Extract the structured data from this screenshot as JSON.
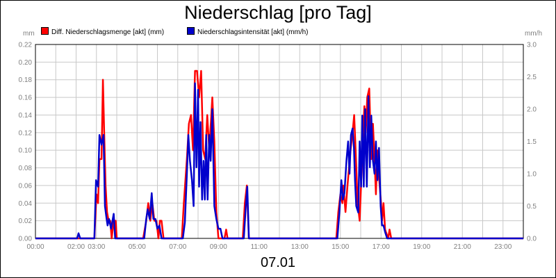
{
  "chart_data": {
    "type": "line",
    "title": "Niederschlag [pro Tag]",
    "date_label": "07.01",
    "y_left_unit": "mm",
    "y_right_unit": "mm/h",
    "y_left_range": [
      0,
      0.22
    ],
    "y_right_range": [
      0,
      3.0
    ],
    "y_left_ticks": [
      "0.00",
      "0.02",
      "0.04",
      "0.06",
      "0.08",
      "0.10",
      "0.12",
      "0.14",
      "0.16",
      "0.18",
      "0.20",
      "0.22"
    ],
    "y_right_ticks": [
      "0.0",
      "0.5",
      "1.0",
      "1.5",
      "2.0",
      "2.5",
      "3.0"
    ],
    "x_range_hours": [
      0,
      24
    ],
    "x_ticks": [
      {
        "h": 0,
        "label": "00:00"
      },
      {
        "h": 2,
        "label": "02:00"
      },
      {
        "h": 3,
        "label": "03:00"
      },
      {
        "h": 5,
        "label": "05:00"
      },
      {
        "h": 7,
        "label": "07:00"
      },
      {
        "h": 9,
        "label": "09:00"
      },
      {
        "h": 11,
        "label": "11:00"
      },
      {
        "h": 13,
        "label": "13:00"
      },
      {
        "h": 15,
        "label": "15:00"
      },
      {
        "h": 17,
        "label": "17:00"
      },
      {
        "h": 19,
        "label": "19:00"
      },
      {
        "h": 21,
        "label": "21:00"
      },
      {
        "h": 23,
        "label": "23:00"
      }
    ],
    "grid": true,
    "legend_position": "top-left",
    "series": [
      {
        "name": "Diff. Niederschlagsmenge [akt] (mm)",
        "color": "#ff0000",
        "axis": "left",
        "points": [
          [
            0,
            0
          ],
          [
            2.9,
            0
          ],
          [
            3.0,
            0.05
          ],
          [
            3.08,
            0.04
          ],
          [
            3.15,
            0.09
          ],
          [
            3.25,
            0.09
          ],
          [
            3.32,
            0.18
          ],
          [
            3.38,
            0.12
          ],
          [
            3.45,
            0.06
          ],
          [
            3.52,
            0.03
          ],
          [
            3.6,
            0.02
          ],
          [
            3.68,
            0.02
          ],
          [
            3.75,
            0
          ],
          [
            3.85,
            0.02
          ],
          [
            3.95,
            0.02
          ],
          [
            4.0,
            0
          ],
          [
            5.3,
            0
          ],
          [
            5.45,
            0.02
          ],
          [
            5.55,
            0.04
          ],
          [
            5.65,
            0.02
          ],
          [
            5.75,
            0.04
          ],
          [
            5.85,
            0.02
          ],
          [
            5.95,
            0.02
          ],
          [
            6.05,
            0
          ],
          [
            6.12,
            0.02
          ],
          [
            6.2,
            0.02
          ],
          [
            6.3,
            0
          ],
          [
            7.2,
            0
          ],
          [
            7.3,
            0.04
          ],
          [
            7.45,
            0.09
          ],
          [
            7.55,
            0.13
          ],
          [
            7.65,
            0.14
          ],
          [
            7.75,
            0.1
          ],
          [
            7.85,
            0.19
          ],
          [
            7.95,
            0.19
          ],
          [
            8.05,
            0.16
          ],
          [
            8.15,
            0.19
          ],
          [
            8.25,
            0.1
          ],
          [
            8.35,
            0.09
          ],
          [
            8.45,
            0.14
          ],
          [
            8.55,
            0.1
          ],
          [
            8.7,
            0.16
          ],
          [
            8.8,
            0.11
          ],
          [
            8.9,
            0.03
          ],
          [
            9.0,
            0
          ],
          [
            9.3,
            0
          ],
          [
            9.38,
            0.01
          ],
          [
            9.45,
            0
          ],
          [
            10.2,
            0
          ],
          [
            10.3,
            0.04
          ],
          [
            10.4,
            0.06
          ],
          [
            10.5,
            0
          ],
          [
            14.8,
            0
          ],
          [
            14.9,
            0.03
          ],
          [
            15.0,
            0.05
          ],
          [
            15.1,
            0.04
          ],
          [
            15.15,
            0.06
          ],
          [
            15.25,
            0.03
          ],
          [
            15.35,
            0.06
          ],
          [
            15.5,
            0.1
          ],
          [
            15.6,
            0.12
          ],
          [
            15.68,
            0.14
          ],
          [
            15.75,
            0.1
          ],
          [
            15.85,
            0.04
          ],
          [
            15.95,
            0.02
          ],
          [
            16.05,
            0.08
          ],
          [
            16.12,
            0.12
          ],
          [
            16.18,
            0.15
          ],
          [
            16.25,
            0.12
          ],
          [
            16.32,
            0.16
          ],
          [
            16.42,
            0.17
          ],
          [
            16.52,
            0.09
          ],
          [
            16.6,
            0.13
          ],
          [
            16.68,
            0.09
          ],
          [
            16.75,
            0.05
          ],
          [
            16.82,
            0.1
          ],
          [
            16.9,
            0.07
          ],
          [
            17.0,
            0.04
          ],
          [
            17.05,
            0.02
          ],
          [
            17.12,
            0.04
          ],
          [
            17.2,
            0.01
          ],
          [
            17.35,
            0
          ],
          [
            17.42,
            0.01
          ],
          [
            17.5,
            0
          ],
          [
            24,
            0
          ]
        ]
      },
      {
        "name": "Niederschlagsintensität [akt] (mm/h)",
        "color": "#0000cc",
        "axis": "right",
        "points": [
          [
            0,
            0
          ],
          [
            2.05,
            0
          ],
          [
            2.12,
            0.08
          ],
          [
            2.2,
            0
          ],
          [
            2.9,
            0
          ],
          [
            2.98,
            0.9
          ],
          [
            3.08,
            0.8
          ],
          [
            3.15,
            1.6
          ],
          [
            3.25,
            1.45
          ],
          [
            3.35,
            1.6
          ],
          [
            3.42,
            0.5
          ],
          [
            3.5,
            0.3
          ],
          [
            3.55,
            0.2
          ],
          [
            3.62,
            0.3
          ],
          [
            3.72,
            0.15
          ],
          [
            3.85,
            0.38
          ],
          [
            3.92,
            0
          ],
          [
            5.35,
            0
          ],
          [
            5.45,
            0.3
          ],
          [
            5.52,
            0.45
          ],
          [
            5.62,
            0.3
          ],
          [
            5.72,
            0.7
          ],
          [
            5.8,
            0.3
          ],
          [
            5.9,
            0.3
          ],
          [
            6.0,
            0.15
          ],
          [
            6.1,
            0.2
          ],
          [
            6.2,
            0
          ],
          [
            7.25,
            0
          ],
          [
            7.35,
            0.25
          ],
          [
            7.45,
            1.0
          ],
          [
            7.52,
            1.6
          ],
          [
            7.6,
            1.2
          ],
          [
            7.7,
            0.9
          ],
          [
            7.78,
            0.5
          ],
          [
            7.85,
            2.4
          ],
          [
            7.92,
            1.1
          ],
          [
            8.0,
            2.3
          ],
          [
            8.05,
            0.8
          ],
          [
            8.12,
            1.8
          ],
          [
            8.2,
            0.6
          ],
          [
            8.27,
            1.2
          ],
          [
            8.33,
            0.6
          ],
          [
            8.4,
            1.6
          ],
          [
            8.47,
            0.6
          ],
          [
            8.55,
            1.6
          ],
          [
            8.62,
            1.2
          ],
          [
            8.7,
            2.0
          ],
          [
            8.8,
            0.5
          ],
          [
            8.9,
            0.3
          ],
          [
            9.0,
            0.15
          ],
          [
            9.1,
            0.15
          ],
          [
            9.2,
            0
          ],
          [
            10.25,
            0
          ],
          [
            10.35,
            0.5
          ],
          [
            10.42,
            0.8
          ],
          [
            10.5,
            0
          ],
          [
            14.85,
            0
          ],
          [
            14.95,
            0.4
          ],
          [
            15.05,
            0.9
          ],
          [
            15.12,
            0.6
          ],
          [
            15.2,
            0.7
          ],
          [
            15.3,
            1.2
          ],
          [
            15.38,
            1.5
          ],
          [
            15.45,
            1.0
          ],
          [
            15.52,
            1.6
          ],
          [
            15.6,
            1.7
          ],
          [
            15.67,
            1.4
          ],
          [
            15.72,
            0.9
          ],
          [
            15.78,
            0.5
          ],
          [
            15.88,
            0.4
          ],
          [
            15.95,
            1.5
          ],
          [
            16.02,
            0.8
          ],
          [
            16.08,
            1.9
          ],
          [
            16.15,
            0.8
          ],
          [
            16.22,
            2.0
          ],
          [
            16.3,
            0.8
          ],
          [
            16.38,
            2.2
          ],
          [
            16.45,
            1.1
          ],
          [
            16.52,
            1.9
          ],
          [
            16.6,
            1.2
          ],
          [
            16.68,
            1.0
          ],
          [
            16.75,
            1.5
          ],
          [
            16.82,
            0.9
          ],
          [
            16.9,
            1.4
          ],
          [
            16.98,
            0.5
          ],
          [
            17.05,
            0.2
          ],
          [
            17.12,
            0.2
          ],
          [
            17.2,
            0.1
          ],
          [
            17.3,
            0
          ],
          [
            24,
            0
          ]
        ]
      }
    ]
  }
}
